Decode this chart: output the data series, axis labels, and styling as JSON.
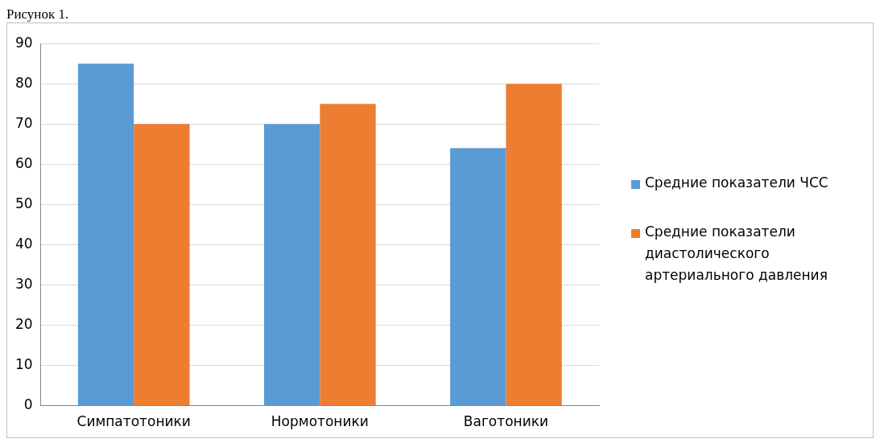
{
  "chart_data": {
    "type": "bar",
    "annotations": [
      "Рисунок 1."
    ],
    "categories": [
      "Симпатотоники",
      "Нормотоники",
      "Ваготоники"
    ],
    "series": [
      {
        "name": "Средние показатели ЧСС",
        "color": "#5b9bd5",
        "values": [
          85,
          70,
          64
        ]
      },
      {
        "name": "Средние показатели диастолического артериального давления",
        "color": "#ed7d31",
        "values": [
          70,
          75,
          80
        ]
      }
    ],
    "ylim": [
      0,
      90
    ],
    "yticks": [
      0,
      10,
      20,
      30,
      40,
      50,
      60,
      70,
      80,
      90
    ],
    "grid": "y",
    "legend": "right"
  }
}
